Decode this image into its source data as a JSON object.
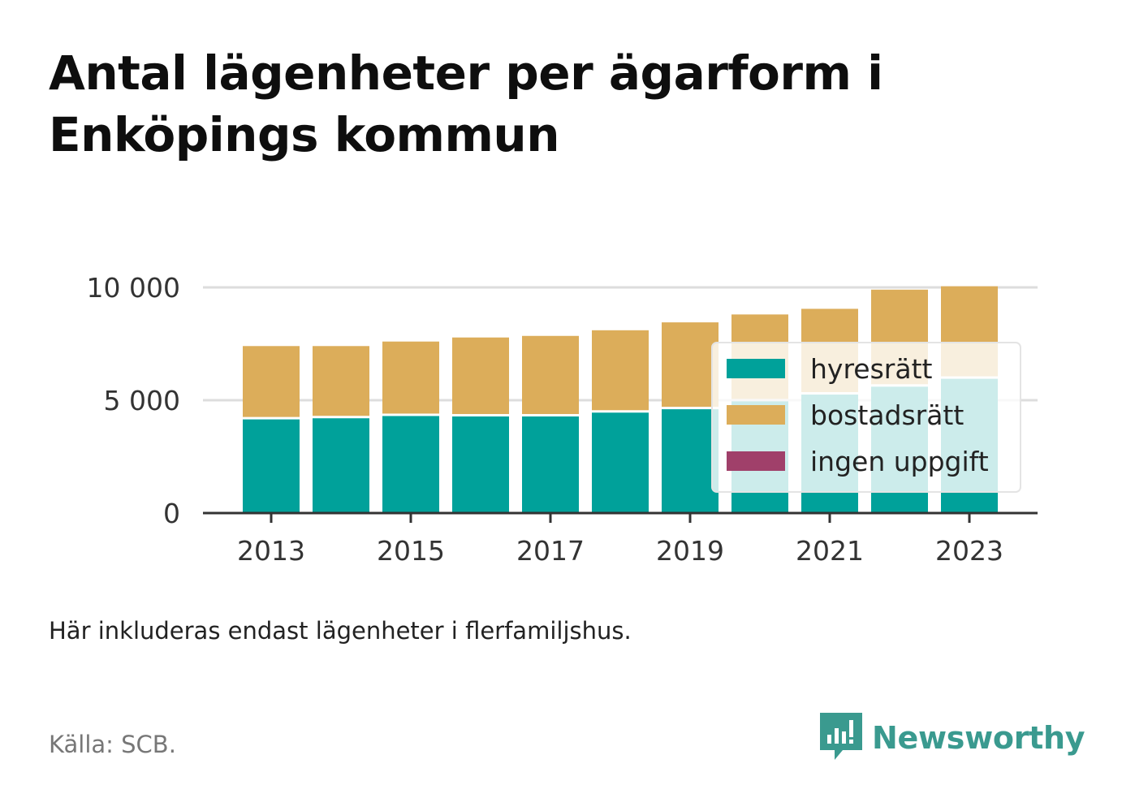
{
  "header": {
    "title": "Antal lägenheter per ägarform i Enköpings kommun"
  },
  "footer": {
    "note": "Här inkluderas endast lägenheter i flerfamiljshus.",
    "source": "Källa: SCB.",
    "brand": "Newsworthy"
  },
  "colors": {
    "hyresratt": "#00a19a",
    "bostadsratt": "#dcad5a",
    "ingen_uppgift": "#a0406a",
    "brand": "#3a9a8f"
  },
  "chart_data": {
    "type": "bar",
    "stacked": true,
    "categories": [
      "2013",
      "2014",
      "2015",
      "2016",
      "2017",
      "2018",
      "2019",
      "2020",
      "2021",
      "2022",
      "2023"
    ],
    "x_tick_labels": [
      "2013",
      "2015",
      "2017",
      "2019",
      "2021",
      "2023"
    ],
    "y_ticks": [
      0,
      5000,
      10000
    ],
    "y_tick_labels": [
      "0",
      "5 000",
      "10 000"
    ],
    "ylim": [
      0,
      10000
    ],
    "grid": true,
    "legend_position": "right",
    "series": [
      {
        "name": "hyresrätt",
        "color": "#00a19a",
        "values": [
          4150,
          4200,
          4300,
          4280,
          4280,
          4450,
          4600,
          4950,
          5250,
          5600,
          5950
        ]
      },
      {
        "name": "bostadsrätt",
        "color": "#dcad5a",
        "values": [
          3250,
          3200,
          3300,
          3500,
          3570,
          3650,
          3850,
          3850,
          3800,
          4300,
          4100
        ]
      },
      {
        "name": "ingen uppgift",
        "color": "#a0406a",
        "values": [
          0,
          0,
          0,
          0,
          0,
          0,
          0,
          0,
          0,
          0,
          0
        ]
      }
    ],
    "title": "Antal lägenheter per ägarform i Enköpings kommun",
    "xlabel": "",
    "ylabel": ""
  }
}
